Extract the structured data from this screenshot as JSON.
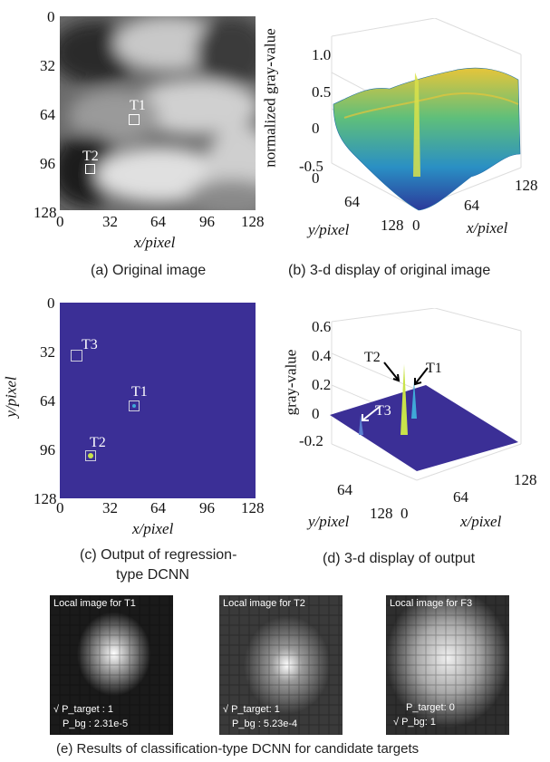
{
  "panel_a": {
    "caption": "(a) Original image",
    "y_ticks": [
      "0",
      "32",
      "64",
      "96",
      "128"
    ],
    "x_ticks": [
      "0",
      "32",
      "64",
      "96",
      "128"
    ],
    "xlabel": "x/pixel",
    "targets": [
      "T1",
      "T2"
    ]
  },
  "panel_b": {
    "caption": "(b) 3-d display of original image",
    "zlabel": "normalized gray-value",
    "z_ticks": [
      "1.0",
      "0.5",
      "0",
      "-0.5"
    ],
    "x_ticks": [
      "0",
      "64",
      "128"
    ],
    "y_ticks": [
      "0",
      "64",
      "128"
    ],
    "xlabel": "x/pixel",
    "ylabel": "y/pixel"
  },
  "panel_c": {
    "caption_line1": "(c) Output of regression-",
    "caption_line2": "type DCNN",
    "y_ticks": [
      "0",
      "32",
      "64",
      "96",
      "128"
    ],
    "x_ticks": [
      "0",
      "32",
      "64",
      "96",
      "128"
    ],
    "xlabel": "x/pixel",
    "ylabel": "y/pixel",
    "targets": [
      "T3",
      "T1",
      "T2"
    ]
  },
  "panel_d": {
    "caption": "(d) 3-d display of output",
    "zlabel": "gray-value",
    "z_ticks": [
      "0.6",
      "0.4",
      "0.2",
      "0",
      "-0.2"
    ],
    "x_ticks": [
      "0",
      "64",
      "128"
    ],
    "y_ticks": [
      "64",
      "128"
    ],
    "xlabel": "x/pixel",
    "ylabel": "y/pixel",
    "targets": [
      "T2",
      "T1",
      "T3"
    ]
  },
  "panel_e": {
    "caption": "(e) Results of classification-type DCNN for candidate targets",
    "locals": [
      {
        "title": "Local image for T1",
        "line1": "√ P_target : 1",
        "line2": "P_bg : 2.31e-5"
      },
      {
        "title": "Local image for T2",
        "line1": "√ P_target: 1",
        "line2": "P_bg : 5.23e-4"
      },
      {
        "title": "Local image for F3",
        "line1": "P_target: 0",
        "line2": "√ P_bg: 1"
      }
    ]
  },
  "colors": {
    "output_bg": "#3b2f96",
    "surface_low": "#2a7bbf",
    "surface_high": "#e9c53a"
  }
}
